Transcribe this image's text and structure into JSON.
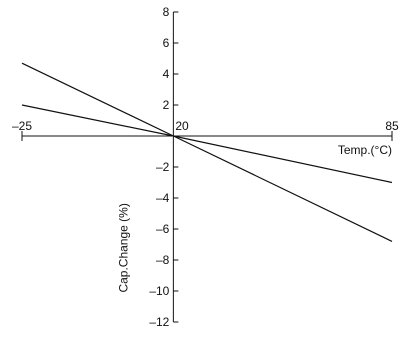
{
  "chart_data": {
    "type": "line",
    "title": "",
    "xlabel": "Temp.(°C)",
    "ylabel": "Cap.Change (%)",
    "xlim": [
      -25,
      85
    ],
    "ylim": [
      -12,
      8
    ],
    "x_ticks": [
      {
        "value": -25,
        "label": "–25"
      },
      {
        "value": 20,
        "label": "20"
      },
      {
        "value": 85,
        "label": "85"
      }
    ],
    "y_ticks": [
      {
        "value": 8,
        "label": "8"
      },
      {
        "value": 6,
        "label": "6"
      },
      {
        "value": 4,
        "label": "4"
      },
      {
        "value": 2,
        "label": "2"
      },
      {
        "value": -2,
        "label": "–2"
      },
      {
        "value": -4,
        "label": "–4"
      },
      {
        "value": -6,
        "label": "–6"
      },
      {
        "value": -8,
        "label": "–8"
      },
      {
        "value": -10,
        "label": "–10"
      },
      {
        "value": -12,
        "label": "–12"
      }
    ],
    "series": [
      {
        "x": [
          -25,
          20,
          85
        ],
        "y": [
          4.7,
          0,
          -6.8
        ],
        "color": "#111111"
      },
      {
        "x": [
          -25,
          20,
          85
        ],
        "y": [
          2.0,
          0,
          -3.0
        ],
        "color": "#111111"
      }
    ],
    "grid": false,
    "axis_color": "#111111"
  }
}
